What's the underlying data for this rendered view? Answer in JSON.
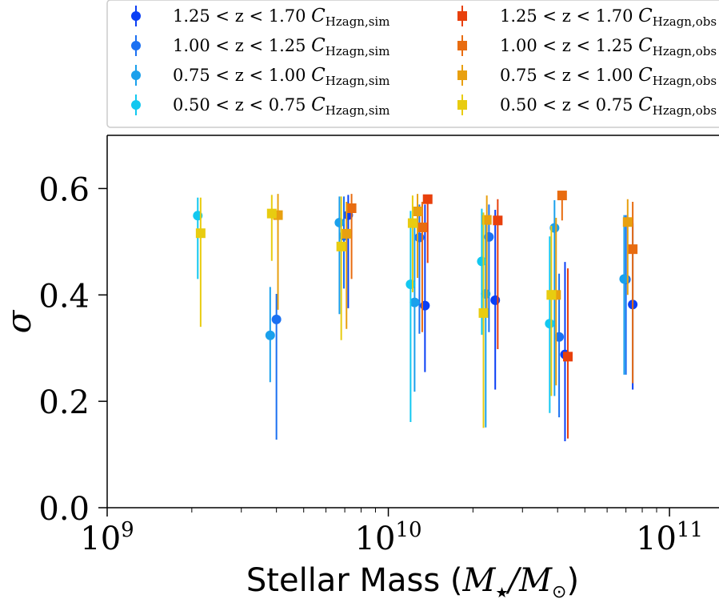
{
  "chart_data": {
    "type": "scatter",
    "x_scale": "log",
    "xlim": [
      1000000000,
      150000000000
    ],
    "ylim": [
      0.0,
      0.7
    ],
    "xlabel_text": "Stellar Mass (",
    "xlabel_math": "M",
    "xlabel_sub": "★",
    "xlabel_slash": "/M",
    "xlabel_sub2": "⊙",
    "xlabel_close": ")",
    "ylabel": "σ",
    "x_ticks": [
      {
        "value": 1000000000,
        "base": "10",
        "exp": "9"
      },
      {
        "value": 10000000000,
        "base": "10",
        "exp": "10"
      },
      {
        "value": 100000000000,
        "base": "10",
        "exp": "11"
      }
    ],
    "y_ticks": [
      {
        "value": 0.0,
        "label": "0.0"
      },
      {
        "value": 0.2,
        "label": "0.2"
      },
      {
        "value": 0.4,
        "label": "0.4"
      },
      {
        "value": 0.6,
        "label": "0.6"
      }
    ],
    "legend_placement": "top, above axes",
    "series": [
      {
        "name": "1.25 < z < 1.70 C_Hzagn,sim",
        "label_range": "1.25 < z < 1.70",
        "label_sym": "C",
        "label_sub": "Hzagn,sim",
        "marker": "circle",
        "color": "#0a3ff5",
        "points": [
          {
            "x": 7200000000,
            "y": 0.55,
            "lo": 0.375,
            "hi": 0.588
          },
          {
            "x": 13500000000,
            "y": 0.38,
            "lo": 0.255,
            "hi": 0.57
          },
          {
            "x": 24000000000,
            "y": 0.39,
            "lo": 0.222,
            "hi": 0.56
          },
          {
            "x": 42500000000,
            "y": 0.288,
            "lo": 0.125,
            "hi": 0.462
          },
          {
            "x": 74000000000,
            "y": 0.382,
            "lo": 0.222,
            "hi": 0.535
          }
        ]
      },
      {
        "name": "1.00 < z < 1.25 C_Hzagn,sim",
        "label_range": "1.00 < z < 1.25",
        "label_sym": "C",
        "label_sub": "Hzagn,sim",
        "marker": "circle",
        "color": "#1a70f2",
        "points": [
          {
            "x": 4000000000,
            "y": 0.354,
            "lo": 0.128,
            "hi": 0.402
          },
          {
            "x": 6950000000,
            "y": 0.511,
            "lo": 0.412,
            "hi": 0.585
          },
          {
            "x": 12900000000,
            "y": 0.508,
            "lo": 0.327,
            "hi": 0.57
          },
          {
            "x": 22800000000,
            "y": 0.509,
            "lo": 0.33,
            "hi": 0.57
          },
          {
            "x": 40500000000,
            "y": 0.321,
            "lo": 0.17,
            "hi": 0.44
          },
          {
            "x": 70000000000,
            "y": 0.429,
            "lo": 0.25,
            "hi": 0.55
          }
        ]
      },
      {
        "name": "0.75 < z < 1.00 C_Hzagn,sim",
        "label_range": "0.75 < z < 1.00",
        "label_sym": "C",
        "label_sub": "Hzagn,sim",
        "marker": "circle",
        "color": "#1aa0ec",
        "points": [
          {
            "x": 3800000000,
            "y": 0.324,
            "lo": 0.236,
            "hi": 0.415
          },
          {
            "x": 6700000000,
            "y": 0.536,
            "lo": 0.364,
            "hi": 0.585
          },
          {
            "x": 12400000000,
            "y": 0.386,
            "lo": 0.218,
            "hi": 0.538
          },
          {
            "x": 22200000000,
            "y": 0.402,
            "lo": 0.151,
            "hi": 0.54
          },
          {
            "x": 39000000000,
            "y": 0.526,
            "lo": 0.21,
            "hi": 0.578
          },
          {
            "x": 69000000000,
            "y": 0.43,
            "lo": 0.25,
            "hi": 0.55
          }
        ]
      },
      {
        "name": "0.50 < z < 0.75 C_Hzagn,sim",
        "label_range": "0.50 < z < 0.75",
        "label_sym": "C",
        "label_sub": "Hzagn,sim",
        "marker": "circle",
        "color": "#12c8f0",
        "points": [
          {
            "x": 2100000000,
            "y": 0.549,
            "lo": 0.43,
            "hi": 0.583
          },
          {
            "x": 12000000000,
            "y": 0.42,
            "lo": 0.161,
            "hi": 0.558
          },
          {
            "x": 21500000000,
            "y": 0.463,
            "lo": 0.325,
            "hi": 0.562
          },
          {
            "x": 37500000000,
            "y": 0.346,
            "lo": 0.178,
            "hi": 0.51
          }
        ]
      },
      {
        "name": "1.25 < z < 1.70 C_Hzagn,obs",
        "label_range": "1.25 < z < 1.70",
        "label_sym": "C",
        "label_sub": "Hzagn,obs",
        "marker": "square",
        "color": "#e8400c",
        "points": [
          {
            "x": 13800000000,
            "y": 0.58,
            "lo": 0.46,
            "hi": 0.585
          },
          {
            "x": 24500000000,
            "y": 0.54,
            "lo": 0.298,
            "hi": 0.58
          },
          {
            "x": 43500000000,
            "y": 0.284,
            "lo": 0.13,
            "hi": 0.45
          }
        ]
      },
      {
        "name": "1.00 < z < 1.25 C_Hzagn,obs",
        "label_range": "1.00 < z < 1.25",
        "label_sym": "C",
        "label_sub": "Hzagn,obs",
        "marker": "square",
        "color": "#e86c10",
        "points": [
          {
            "x": 7400000000,
            "y": 0.563,
            "lo": 0.43,
            "hi": 0.59
          },
          {
            "x": 13200000000,
            "y": 0.527,
            "lo": 0.33,
            "hi": 0.575
          },
          {
            "x": 41500000000,
            "y": 0.587,
            "lo": 0.54,
            "hi": 0.595
          },
          {
            "x": 74000000000,
            "y": 0.486,
            "lo": 0.234,
            "hi": 0.575
          }
        ]
      },
      {
        "name": "0.75 < z < 1.00 C_Hzagn,obs",
        "label_range": "0.75 < z < 1.00",
        "label_sym": "C",
        "label_sub": "Hzagn,obs",
        "marker": "square",
        "color": "#e8a010",
        "points": [
          {
            "x": 4050000000,
            "y": 0.55,
            "lo": 0.372,
            "hi": 0.59
          },
          {
            "x": 7100000000,
            "y": 0.515,
            "lo": 0.336,
            "hi": 0.575
          },
          {
            "x": 12700000000,
            "y": 0.557,
            "lo": 0.432,
            "hi": 0.59
          },
          {
            "x": 22400000000,
            "y": 0.541,
            "lo": 0.372,
            "hi": 0.587
          },
          {
            "x": 39500000000,
            "y": 0.4,
            "lo": 0.23,
            "hi": 0.545
          },
          {
            "x": 71000000000,
            "y": 0.537,
            "lo": 0.4,
            "hi": 0.58
          }
        ]
      },
      {
        "name": "0.50 < z < 0.75 C_Hzagn,obs",
        "label_range": "0.50 < z < 0.75",
        "label_sym": "C",
        "label_sub": "Hzagn,obs",
        "marker": "square",
        "color": "#e8cc10",
        "points": [
          {
            "x": 2150000000,
            "y": 0.516,
            "lo": 0.34,
            "hi": 0.583
          },
          {
            "x": 3850000000,
            "y": 0.553,
            "lo": 0.464,
            "hi": 0.588
          },
          {
            "x": 6800000000,
            "y": 0.491,
            "lo": 0.315,
            "hi": 0.585
          },
          {
            "x": 12200000000,
            "y": 0.535,
            "lo": 0.405,
            "hi": 0.587
          },
          {
            "x": 21800000000,
            "y": 0.366,
            "lo": 0.15,
            "hi": 0.555
          },
          {
            "x": 38000000000,
            "y": 0.4,
            "lo": 0.21,
            "hi": 0.53
          }
        ]
      }
    ]
  }
}
